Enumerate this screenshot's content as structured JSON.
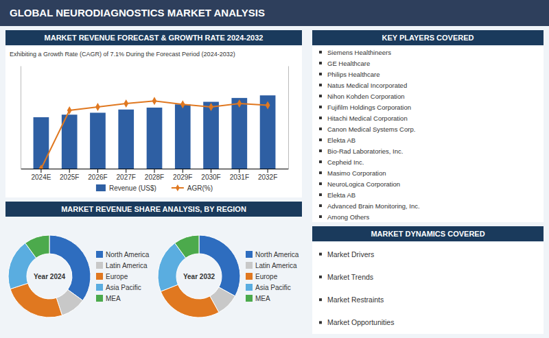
{
  "title": "GLOBAL NEURODIAGNOSTICS MARKET ANALYSIS",
  "chart_data": [
    {
      "type": "bar",
      "title": "MARKET REVENUE FORECAST & GROWTH RATE 2024-2032",
      "subtitle": "Exhibiting a Growth Rate (CAGR) of 7.1% During the Forecast Period (2024-2032)",
      "categories": [
        "2024E",
        "2025F",
        "2026F",
        "2027F",
        "2028F",
        "2029F",
        "2030F",
        "2031F",
        "2032F"
      ],
      "series": [
        {
          "name": "Revenue (US$)",
          "type": "bar",
          "color": "#2e5fa3",
          "values": [
            4.0,
            4.2,
            4.35,
            4.6,
            4.75,
            5.0,
            5.2,
            5.5,
            5.7
          ]
        },
        {
          "name": "AGR(%)",
          "type": "line",
          "axis": "y2",
          "color": "#e07820",
          "marker": "diamond",
          "values": [
            0,
            6.8,
            7.2,
            7.6,
            7.9,
            7.5,
            7.2,
            7.6,
            7.4
          ]
        }
      ],
      "ylim": [
        0,
        8
      ],
      "y2lim": [
        0,
        12
      ],
      "tick_labels": "x",
      "grid": false,
      "legend": "bottom"
    },
    {
      "type": "pie",
      "title": "Year 2024",
      "categories": [
        "North America",
        "Latin America",
        "Europe",
        "Asia Pacific",
        "MEA"
      ],
      "values": [
        35,
        10,
        25,
        20,
        10
      ],
      "colors": [
        "#2e6dbf",
        "#c8c8c8",
        "#e07820",
        "#5aade0",
        "#4caa4c"
      ],
      "legend": "right"
    },
    {
      "type": "pie",
      "title": "Year 2032",
      "categories": [
        "North America",
        "Latin America",
        "Europe",
        "Asia Pacific",
        "MEA"
      ],
      "values": [
        33,
        9,
        27,
        21,
        10
      ],
      "colors": [
        "#2e6dbf",
        "#c8c8c8",
        "#e07820",
        "#5aade0",
        "#4caa4c"
      ],
      "legend": "right"
    }
  ],
  "annotations": [
    {
      "title": "MARKET REVENUE SHARE ANALYSIS, BY REGION"
    },
    {
      "title": "KEY PLAYERS COVERED",
      "items": [
        "Siemens Healthineers",
        "GE Healthcare",
        "Philips Healthcare",
        "Natus Medical Incorporated",
        "Nihon Kohden Corporation",
        "Fujifilm Holdings Corporation",
        "Hitachi Medical Corporation",
        "Canon Medical Systems Corp.",
        "Elekta AB",
        "Bio-Rad Laboratories, Inc.",
        "Cepheid Inc.",
        "Masimo Corporation",
        "NeuroLogica Corporation",
        "Elekta AB",
        "Advanced Brain Monitoring, Inc.",
        "Among Others"
      ]
    },
    {
      "title": "MARKET DYNAMICS COVERED",
      "items": [
        "Market Drivers",
        "Market Trends",
        "Market Restraints",
        "Market Opportunities"
      ]
    }
  ]
}
